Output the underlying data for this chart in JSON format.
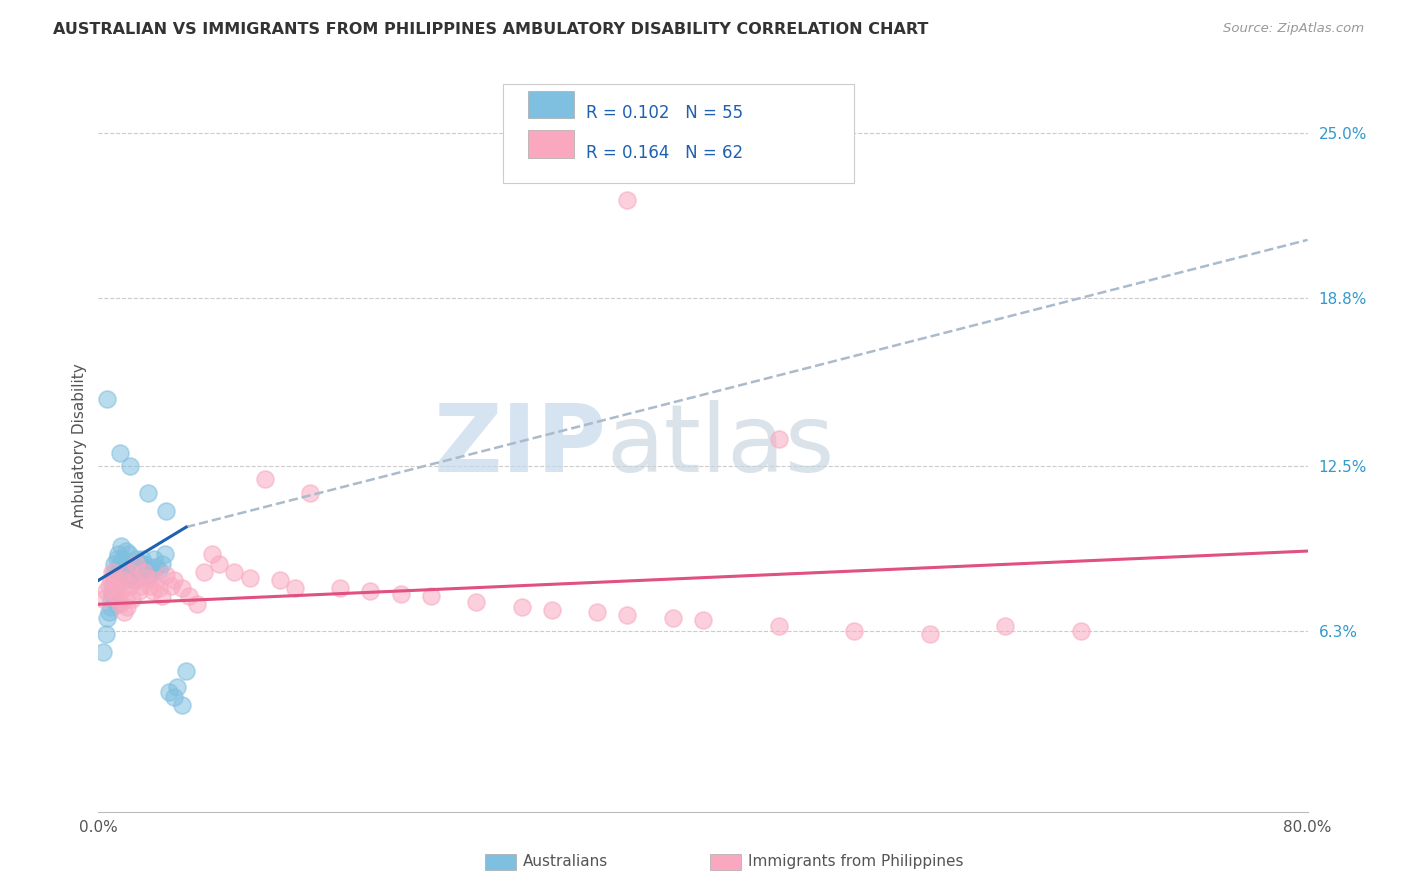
{
  "title": "AUSTRALIAN VS IMMIGRANTS FROM PHILIPPINES AMBULATORY DISABILITY CORRELATION CHART",
  "source": "Source: ZipAtlas.com",
  "xlabel_australians": "Australians",
  "xlabel_philippines": "Immigrants from Philippines",
  "ylabel": "Ambulatory Disability",
  "xlim": [
    0.0,
    0.8
  ],
  "ylim": [
    -0.005,
    0.27
  ],
  "yticks_right": [
    0.063,
    0.125,
    0.188,
    0.25
  ],
  "ytick_labels_right": [
    "6.3%",
    "12.5%",
    "18.8%",
    "25.0%"
  ],
  "color_blue": "#7fbfdf",
  "color_pink": "#f9a8c0",
  "color_blue_line": "#2060b0",
  "color_pink_line": "#e05080",
  "color_dash": "#aabbcc",
  "color_legend_text": "#2060b0",
  "watermark_color": "#c8d8e8",
  "blue_scatter_x": [
    0.003,
    0.005,
    0.006,
    0.007,
    0.008,
    0.008,
    0.009,
    0.009,
    0.01,
    0.01,
    0.01,
    0.011,
    0.012,
    0.012,
    0.013,
    0.013,
    0.014,
    0.015,
    0.015,
    0.016,
    0.017,
    0.018,
    0.018,
    0.019,
    0.02,
    0.02,
    0.021,
    0.022,
    0.023,
    0.025,
    0.025,
    0.026,
    0.027,
    0.028,
    0.029,
    0.03,
    0.03,
    0.032,
    0.034,
    0.035,
    0.037,
    0.038,
    0.04,
    0.042,
    0.044,
    0.047,
    0.05,
    0.052,
    0.055,
    0.058,
    0.006,
    0.014,
    0.021,
    0.033,
    0.045
  ],
  "blue_scatter_y": [
    0.055,
    0.062,
    0.068,
    0.07,
    0.072,
    0.075,
    0.077,
    0.08,
    0.082,
    0.085,
    0.088,
    0.078,
    0.073,
    0.09,
    0.085,
    0.092,
    0.088,
    0.083,
    0.095,
    0.09,
    0.086,
    0.082,
    0.093,
    0.088,
    0.085,
    0.092,
    0.088,
    0.084,
    0.086,
    0.09,
    0.082,
    0.086,
    0.085,
    0.088,
    0.09,
    0.086,
    0.088,
    0.084,
    0.087,
    0.085,
    0.09,
    0.087,
    0.086,
    0.088,
    0.092,
    0.04,
    0.038,
    0.042,
    0.035,
    0.048,
    0.15,
    0.13,
    0.125,
    0.115,
    0.108
  ],
  "pink_scatter_x": [
    0.003,
    0.005,
    0.007,
    0.008,
    0.009,
    0.01,
    0.011,
    0.012,
    0.013,
    0.014,
    0.015,
    0.016,
    0.017,
    0.018,
    0.019,
    0.02,
    0.021,
    0.022,
    0.023,
    0.025,
    0.027,
    0.028,
    0.03,
    0.032,
    0.034,
    0.036,
    0.038,
    0.04,
    0.042,
    0.045,
    0.048,
    0.05,
    0.055,
    0.06,
    0.065,
    0.07,
    0.075,
    0.08,
    0.09,
    0.1,
    0.11,
    0.12,
    0.13,
    0.14,
    0.16,
    0.18,
    0.2,
    0.22,
    0.25,
    0.28,
    0.3,
    0.33,
    0.35,
    0.38,
    0.4,
    0.45,
    0.5,
    0.55,
    0.6,
    0.65,
    0.35,
    0.45
  ],
  "pink_scatter_y": [
    0.075,
    0.078,
    0.08,
    0.082,
    0.085,
    0.083,
    0.078,
    0.08,
    0.075,
    0.073,
    0.078,
    0.082,
    0.07,
    0.075,
    0.072,
    0.085,
    0.08,
    0.075,
    0.082,
    0.088,
    0.078,
    0.08,
    0.085,
    0.083,
    0.08,
    0.078,
    0.082,
    0.079,
    0.076,
    0.084,
    0.08,
    0.082,
    0.079,
    0.076,
    0.073,
    0.085,
    0.092,
    0.088,
    0.085,
    0.083,
    0.12,
    0.082,
    0.079,
    0.115,
    0.079,
    0.078,
    0.077,
    0.076,
    0.074,
    0.072,
    0.071,
    0.07,
    0.069,
    0.068,
    0.067,
    0.065,
    0.063,
    0.062,
    0.065,
    0.063,
    0.225,
    0.135
  ],
  "blue_line_x0": 0.0,
  "blue_line_x1": 0.058,
  "blue_line_y0": 0.082,
  "blue_line_y1": 0.102,
  "pink_line_x0": 0.0,
  "pink_line_x1": 0.8,
  "pink_line_y0": 0.073,
  "pink_line_y1": 0.093,
  "dash_line_x0": 0.058,
  "dash_line_x1": 0.8,
  "dash_line_y0": 0.102,
  "dash_line_y1": 0.21
}
